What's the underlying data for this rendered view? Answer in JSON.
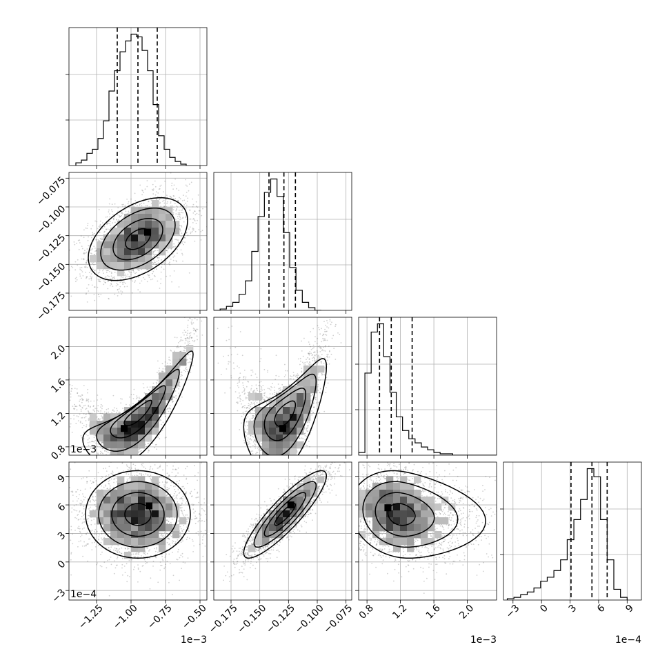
{
  "chart_data": {
    "type": "corner",
    "grid": true,
    "panels_per_side": 4,
    "parameters": [
      {
        "range": [
          -1.45,
          -0.45
        ],
        "ticks": [
          -1.25,
          -1.0,
          -0.75,
          -0.5
        ],
        "tick_labels": [
          "−1.25",
          "−1.00",
          "−0.75",
          "−0.50"
        ],
        "offset_label": "1e−3"
      },
      {
        "range": [
          -0.19,
          -0.07
        ],
        "ticks": [
          -0.175,
          -0.15,
          -0.125,
          -0.1,
          -0.075
        ],
        "tick_labels": [
          "−0.175",
          "−0.150",
          "−0.125",
          "−0.100",
          "−0.075"
        ],
        "offset_label": ""
      },
      {
        "range": [
          0.7,
          2.35
        ],
        "ticks": [
          0.8,
          1.2,
          1.6,
          2.0
        ],
        "tick_labels": [
          "0.8",
          "1.2",
          "1.6",
          "2.0"
        ],
        "offset_label": "1e−3"
      },
      {
        "range": [
          -4,
          10.5
        ],
        "ticks": [
          -3,
          0,
          3,
          6,
          9
        ],
        "tick_labels": [
          "−3",
          "0",
          "3",
          "6",
          "9"
        ],
        "offset_label": "1e−4"
      }
    ],
    "y_offset_labels": [
      "",
      "1e−3",
      "1e−4"
    ],
    "histograms": [
      {
        "bin_edges_start": -1.4,
        "bin_width": 0.04,
        "counts": [
          2,
          4,
          9,
          12,
          20,
          33,
          55,
          70,
          84,
          92,
          97,
          95,
          85,
          70,
          45,
          22,
          12,
          6,
          3,
          1
        ],
        "quantiles": [
          -1.1,
          -0.95,
          -0.81
        ]
      },
      {
        "bin_edges_start": -0.19,
        "bin_width": 0.0055,
        "counts": [
          0,
          1,
          3,
          6,
          12,
          22,
          44,
          70,
          88,
          98,
          85,
          58,
          32,
          15,
          6,
          2,
          0
        ],
        "quantiles": [
          -0.142,
          -0.129,
          -0.119
        ]
      },
      {
        "bin_edges_start": 0.7,
        "bin_width": 0.075,
        "counts": [
          2,
          60,
          90,
          96,
          72,
          46,
          28,
          18,
          12,
          9,
          6,
          4,
          2,
          1,
          1,
          0,
          0,
          0,
          0,
          0,
          0,
          0
        ],
        "quantiles": [
          0.95,
          1.09,
          1.34
        ]
      },
      {
        "bin_edges_start": -3.6,
        "bin_width": 0.7,
        "counts": [
          1,
          2,
          4,
          6,
          9,
          14,
          17,
          22,
          30,
          45,
          60,
          75,
          98,
          92,
          60,
          30,
          8,
          2
        ],
        "quantiles": [
          3.1,
          5.3,
          6.9
        ]
      }
    ],
    "pairs": [
      {
        "row": 1,
        "col": 0,
        "mean": [
          -0.95,
          -0.128
        ],
        "std": [
          0.18,
          0.018
        ],
        "corr": 0.45,
        "shape": "gaussian",
        "peak": [
          -0.88,
          -0.122
        ]
      },
      {
        "row": 2,
        "col": 0,
        "mean": [
          -0.95,
          1.2
        ],
        "std": [
          0.2,
          0.3
        ],
        "corr": 0.85,
        "shape": "banana",
        "peak": [
          -1.05,
          1.02
        ]
      },
      {
        "row": 2,
        "col": 1,
        "mean": [
          -0.128,
          1.2
        ],
        "std": [
          0.018,
          0.3
        ],
        "corr": 0.6,
        "shape": "banana",
        "peak": [
          -0.13,
          1.02
        ]
      },
      {
        "row": 3,
        "col": 0,
        "mean": [
          -0.95,
          5.0
        ],
        "std": [
          0.19,
          2.3
        ],
        "corr": 0.0,
        "shape": "gaussian",
        "peak": [
          -0.87,
          5.9
        ]
      },
      {
        "row": 3,
        "col": 1,
        "mean": [
          -0.128,
          5.0
        ],
        "std": [
          0.018,
          2.3
        ],
        "corr": 0.88,
        "shape": "gaussian",
        "peak": [
          -0.123,
          6.0
        ]
      },
      {
        "row": 3,
        "col": 2,
        "mean": [
          1.2,
          5.0
        ],
        "std": [
          0.3,
          2.3
        ],
        "corr": -0.15,
        "shape": "skew",
        "peak": [
          1.05,
          5.7
        ]
      }
    ]
  }
}
